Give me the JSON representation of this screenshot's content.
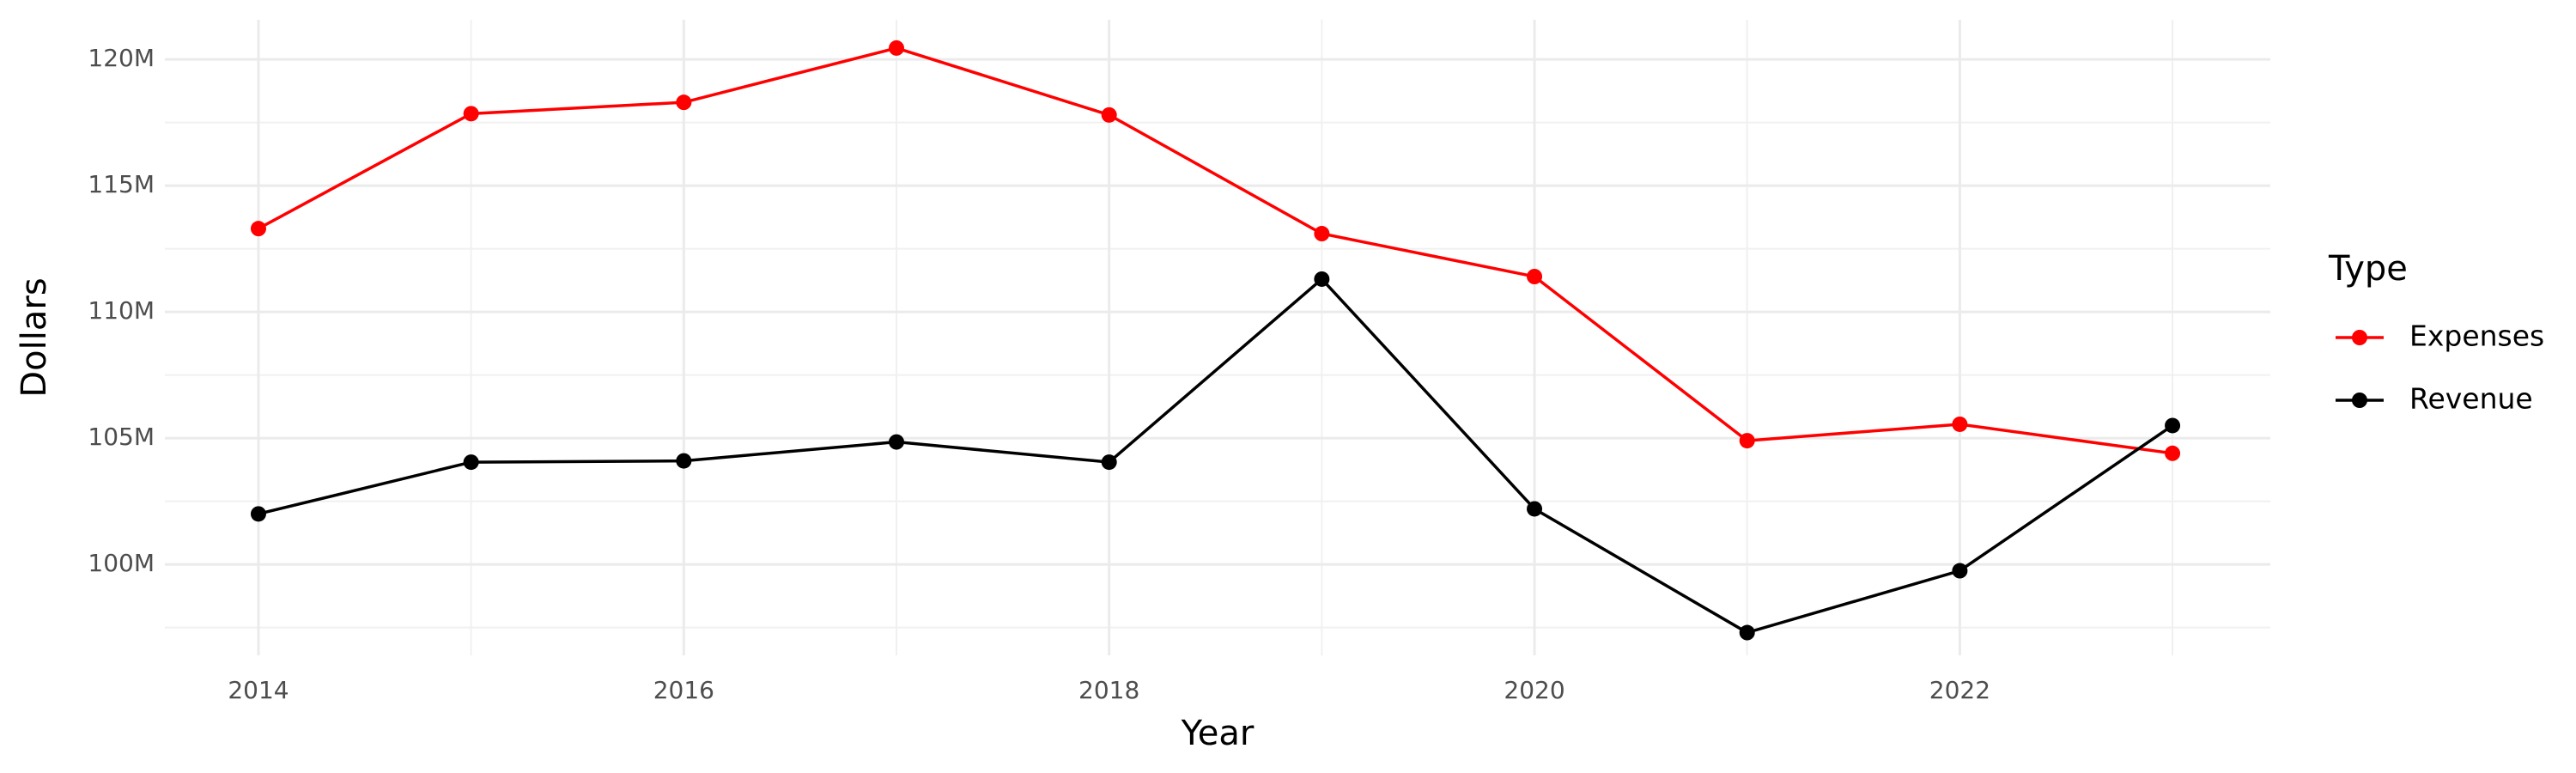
{
  "chart_data": {
    "type": "line",
    "x_label": "Year",
    "y_label": "Dollars",
    "legend_title": "Type",
    "legend_position": "right",
    "grid": true,
    "x": [
      2014,
      2015,
      2016,
      2017,
      2018,
      2019,
      2020,
      2021,
      2022,
      2023
    ],
    "series": [
      {
        "name": "Expenses",
        "color": "#ff0000",
        "values": [
          113300000,
          117850000,
          118300000,
          120450000,
          117800000,
          113100000,
          111400000,
          104900000,
          105550000,
          104400000
        ]
      },
      {
        "name": "Revenue",
        "color": "#000000",
        "values": [
          102000000,
          104050000,
          104100000,
          104850000,
          104050000,
          111300000,
          102200000,
          97300000,
          99750000,
          105500000
        ]
      }
    ],
    "xlim": [
      2013.56,
      2023.46
    ],
    "xticks": [
      2014,
      2016,
      2018,
      2020,
      2022
    ],
    "ylim": [
      96400000,
      121570000
    ],
    "yticks": [
      {
        "value": 100000000,
        "label": "100M"
      },
      {
        "value": 105000000,
        "label": "105M"
      },
      {
        "value": 110000000,
        "label": "110M"
      },
      {
        "value": 115000000,
        "label": "115M"
      },
      {
        "value": 120000000,
        "label": "120M"
      }
    ]
  }
}
